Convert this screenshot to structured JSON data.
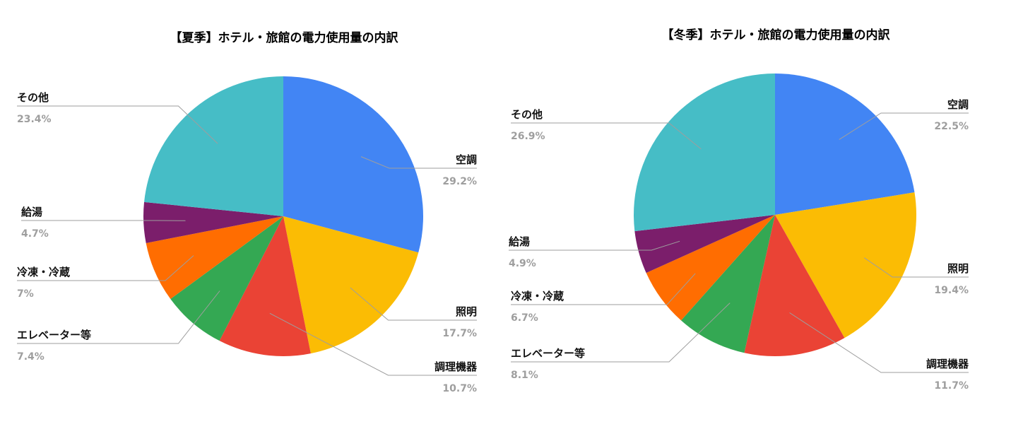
{
  "chart_data": [
    {
      "type": "pie",
      "title": "【夏季】ホテル・旅館の電力使用量の内訳",
      "slices": [
        {
          "label": "空調",
          "value_text": "29.2%",
          "value": 29.2,
          "color": "#4285F4"
        },
        {
          "label": "照明",
          "value_text": "17.7%",
          "value": 17.7,
          "color": "#FBBC04"
        },
        {
          "label": "調理機器",
          "value_text": "10.7%",
          "value": 10.7,
          "color": "#EA4335"
        },
        {
          "label": "エレベーター等",
          "value_text": "7.4%",
          "value": 7.4,
          "color": "#34A853"
        },
        {
          "label": "冷凍・冷蔵",
          "value_text": "7%",
          "value": 7.0,
          "color": "#FF6D01"
        },
        {
          "label": "給湯",
          "value_text": "4.7%",
          "value": 4.7,
          "color": "#7B1E6B"
        },
        {
          "label": "その他",
          "value_text": "23.4%",
          "value": 23.4,
          "color": "#46BDC6"
        }
      ]
    },
    {
      "type": "pie",
      "title": "【冬季】ホテル・旅館の電力使用量の内訳",
      "slices": [
        {
          "label": "空調",
          "value_text": "22.5%",
          "value": 22.5,
          "color": "#4285F4"
        },
        {
          "label": "照明",
          "value_text": "19.4%",
          "value": 19.4,
          "color": "#FBBC04"
        },
        {
          "label": "調理機器",
          "value_text": "11.7%",
          "value": 11.7,
          "color": "#EA4335"
        },
        {
          "label": "エレベーター等",
          "value_text": "8.1%",
          "value": 8.1,
          "color": "#34A853"
        },
        {
          "label": "冷凍・冷蔵",
          "value_text": "6.7%",
          "value": 6.7,
          "color": "#FF6D01"
        },
        {
          "label": "給湯",
          "value_text": "4.9%",
          "value": 4.9,
          "color": "#7B1E6B"
        },
        {
          "label": "その他",
          "value_text": "26.9%",
          "value": 26.9,
          "color": "#46BDC6"
        }
      ]
    }
  ]
}
